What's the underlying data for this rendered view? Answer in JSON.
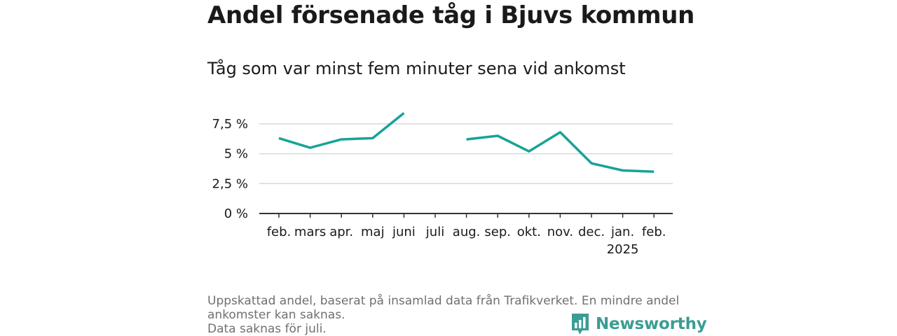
{
  "title": "Andel försenade tåg i Bjuvs kommun",
  "subtitle": "Tåg som var minst fem minuter sena vid ankomst",
  "footnote": [
    "Uppskattad andel, baserat på insamlad data från Trafikverket. En mindre andel",
    "ankomster kan saknas.",
    "Data saknas för juli."
  ],
  "brand": {
    "name": "Newsworthy",
    "icon": "bar-chart-logo-icon"
  },
  "colors": {
    "line": "#17a398",
    "grid": "#d9d9d9",
    "axis": "#333333",
    "brand": "#3a9d94"
  },
  "chart_data": {
    "type": "line",
    "categories": [
      "feb.",
      "mars",
      "apr.",
      "maj",
      "juni",
      "juli",
      "aug.",
      "sep.",
      "okt.",
      "nov.",
      "dec.",
      "jan.",
      "feb."
    ],
    "category_sublabels": [
      "",
      "",
      "",
      "",
      "",
      "",
      "",
      "",
      "",
      "",
      "",
      "2025",
      ""
    ],
    "series": [
      {
        "values": [
          6.3,
          5.5,
          6.2,
          6.3,
          8.4,
          null,
          6.2,
          6.5,
          5.2,
          6.8,
          4.2,
          3.6,
          3.5
        ]
      }
    ],
    "yticks": [
      0,
      2.5,
      5,
      7.5
    ],
    "ytick_labels": [
      "0 %",
      "2,5 %",
      "5 %",
      "7,5 %"
    ],
    "ylim": [
      0,
      8.5
    ],
    "grid": true
  }
}
